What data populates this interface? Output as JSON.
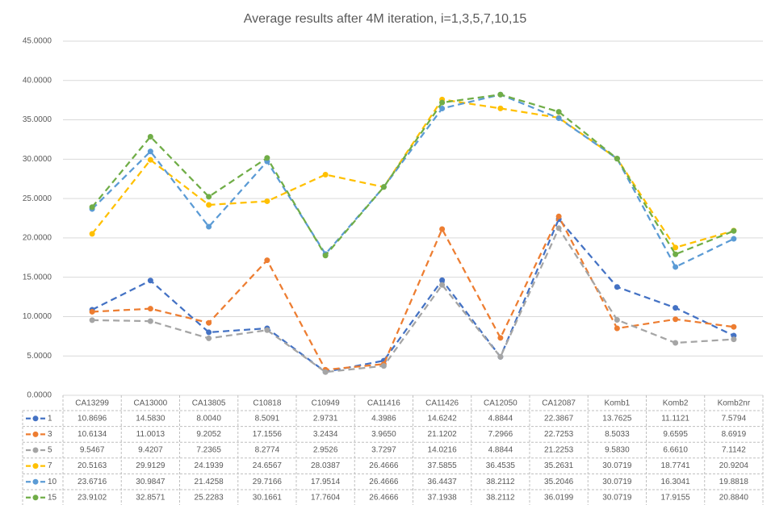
{
  "chart_data": {
    "type": "line",
    "title": "Average results after 4M iteration, i=1,3,5,7,10,15",
    "categories": [
      "CA13299",
      "CA13000",
      "CA13805",
      "C10818",
      "C10949",
      "CA11416",
      "CA11426",
      "CA12050",
      "CA12087",
      "Komb1",
      "Komb2",
      "Komb2nr"
    ],
    "ylim": [
      0,
      45
    ],
    "yticks": [
      {
        "value": 0,
        "label": "0.0000"
      },
      {
        "value": 5,
        "label": "5.0000"
      },
      {
        "value": 10,
        "label": "10.0000"
      },
      {
        "value": 15,
        "label": "15.0000"
      },
      {
        "value": 20,
        "label": "20.0000"
      },
      {
        "value": 25,
        "label": "25.0000"
      },
      {
        "value": 30,
        "label": "30.0000"
      },
      {
        "value": 35,
        "label": "35.0000"
      },
      {
        "value": 40,
        "label": "40.0000"
      },
      {
        "value": 45,
        "label": "45.0000"
      }
    ],
    "grid": true,
    "series": [
      {
        "name": "1",
        "color": "#4472c4",
        "values": [
          10.8696,
          14.583,
          8.004,
          8.5091,
          2.9731,
          4.3986,
          14.6242,
          4.8844,
          22.3867,
          13.7625,
          11.1121,
          7.5794
        ],
        "value_labels": [
          "10.8696",
          "14.5830",
          "8.0040",
          "8.5091",
          "2.9731",
          "4.3986",
          "14.6242",
          "4.8844",
          "22.3867",
          "13.7625",
          "11.1121",
          "7.5794"
        ]
      },
      {
        "name": "3",
        "color": "#ed7d31",
        "values": [
          10.6134,
          11.0013,
          9.2052,
          17.1556,
          3.2434,
          3.965,
          21.1202,
          7.2966,
          22.7253,
          8.5033,
          9.6595,
          8.6919
        ],
        "value_labels": [
          "10.6134",
          "11.0013",
          "9.2052",
          "17.1556",
          "3.2434",
          "3.9650",
          "21.1202",
          "7.2966",
          "22.7253",
          "8.5033",
          "9.6595",
          "8.6919"
        ]
      },
      {
        "name": "5",
        "color": "#a5a5a5",
        "values": [
          9.5467,
          9.4207,
          7.2365,
          8.2774,
          2.9526,
          3.7297,
          14.0216,
          4.8844,
          21.2253,
          9.583,
          6.661,
          7.1142
        ],
        "value_labels": [
          "9.5467",
          "9.4207",
          "7.2365",
          "8.2774",
          "2.9526",
          "3.7297",
          "14.0216",
          "4.8844",
          "21.2253",
          "9.5830",
          "6.6610",
          "7.1142"
        ]
      },
      {
        "name": "7",
        "color": "#ffc000",
        "values": [
          20.5163,
          29.9129,
          24.1939,
          24.6567,
          28.0387,
          26.4666,
          37.5855,
          36.4535,
          35.2631,
          30.0719,
          18.7741,
          20.9204
        ],
        "value_labels": [
          "20.5163",
          "29.9129",
          "24.1939",
          "24.6567",
          "28.0387",
          "26.4666",
          "37.5855",
          "36.4535",
          "35.2631",
          "30.0719",
          "18.7741",
          "20.9204"
        ]
      },
      {
        "name": "10",
        "color": "#5b9bd5",
        "values": [
          23.6716,
          30.9847,
          21.4258,
          29.7166,
          17.9514,
          26.4666,
          36.4437,
          38.2112,
          35.2046,
          30.0719,
          16.3041,
          19.8818
        ],
        "value_labels": [
          "23.6716",
          "30.9847",
          "21.4258",
          "29.7166",
          "17.9514",
          "26.4666",
          "36.4437",
          "38.2112",
          "35.2046",
          "30.0719",
          "16.3041",
          "19.8818"
        ]
      },
      {
        "name": "15",
        "color": "#70ad47",
        "values": [
          23.9102,
          32.8571,
          25.2283,
          30.1661,
          17.7604,
          26.4666,
          37.1938,
          38.2112,
          36.0199,
          30.0719,
          17.9155,
          20.884
        ],
        "value_labels": [
          "23.9102",
          "32.8571",
          "25.2283",
          "30.1661",
          "17.7604",
          "26.4666",
          "37.1938",
          "38.2112",
          "36.0199",
          "30.0719",
          "17.9155",
          "20.8840"
        ]
      }
    ]
  }
}
